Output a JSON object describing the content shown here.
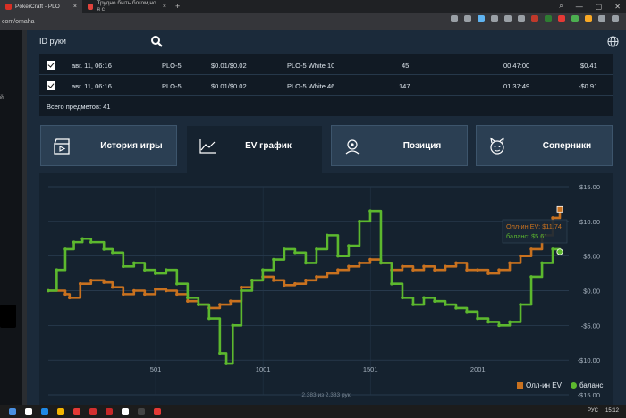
{
  "browser": {
    "tabs": [
      {
        "label": "PokerCraft - PLO",
        "close": "×",
        "color": "#d93025"
      },
      {
        "label": "Трудно быть богом,но я с",
        "close": "×",
        "color": "#e0433c"
      }
    ],
    "new_tab": "+",
    "url": "com/omaha",
    "window_controls": [
      "⌕",
      "—",
      "▢",
      "✕"
    ],
    "extensions": [
      "#9aa0a6",
      "#9aa0a6",
      "#5fb3f0",
      "#9aa0a6",
      "#9aa0a6",
      "#9aa0a6",
      "#c0392b",
      "#2e7d32",
      "#e53935",
      "#4caf50",
      "#f9a825",
      "#9aa0a6",
      "#9aa0a6"
    ]
  },
  "search": {
    "label": "ID руки"
  },
  "hands_table": {
    "rows": [
      {
        "date": "авг. 11, 06:16",
        "game": "PLO-5",
        "stakes": "$0.01/$0.02",
        "table": "PLO-5 White 10",
        "hands": "45",
        "duration": "00:47:00",
        "result": "$0.41"
      },
      {
        "date": "авг. 11, 06:16",
        "game": "PLO-5",
        "stakes": "$0.01/$0.02",
        "table": "PLO-5 White 46",
        "hands": "147",
        "duration": "01:37:49",
        "result": "-$0.91"
      }
    ],
    "total": "Всего предметов: 41"
  },
  "tabs": [
    {
      "label": "История игры",
      "icon": "clapperboard-icon"
    },
    {
      "label": "EV график",
      "icon": "line-chart-icon"
    },
    {
      "label": "Позиция",
      "icon": "position-icon"
    },
    {
      "label": "Соперники",
      "icon": "devil-icon"
    }
  ],
  "chart_data": {
    "type": "line",
    "x_ticks": [
      "501",
      "1001",
      "1501",
      "2001"
    ],
    "x_tick_values": [
      501,
      1001,
      1501,
      2001
    ],
    "y_ticks": [
      "$15.00",
      "$10.00",
      "$5.00",
      "$0.00",
      "-$5.00",
      "-$10.00",
      "-$15.00"
    ],
    "y_tick_values": [
      15,
      10,
      5,
      0,
      -5,
      -10,
      -15
    ],
    "xlim": [
      1,
      2383
    ],
    "ylim": [
      -15,
      15
    ],
    "grid": true,
    "legend_position": "bottom-right",
    "series": [
      {
        "name": "Олл-ин EV",
        "color": "#c8711f",
        "x": [
          1,
          80,
          100,
          150,
          200,
          260,
          300,
          350,
          400,
          450,
          500,
          550,
          600,
          650,
          700,
          750,
          800,
          850,
          900,
          950,
          1000,
          1050,
          1100,
          1150,
          1200,
          1250,
          1300,
          1350,
          1400,
          1450,
          1500,
          1550,
          1600,
          1650,
          1700,
          1750,
          1800,
          1850,
          1900,
          1950,
          2000,
          2050,
          2100,
          2150,
          2200,
          2250,
          2300,
          2350,
          2383
        ],
        "y": [
          0.0,
          -0.5,
          -1.0,
          1.0,
          1.5,
          1.2,
          0.5,
          -0.5,
          0.0,
          -0.5,
          0.2,
          0.0,
          -0.5,
          -1.5,
          -2.0,
          -2.5,
          -2.0,
          -1.5,
          0.5,
          1.5,
          2.0,
          1.5,
          0.8,
          1.0,
          1.5,
          2.0,
          2.5,
          3.0,
          3.5,
          4.0,
          4.5,
          4.0,
          3.0,
          3.5,
          3.0,
          3.5,
          3.0,
          3.5,
          4.0,
          3.0,
          3.0,
          2.5,
          3.0,
          4.0,
          5.0,
          6.0,
          8.0,
          10.5,
          11.74
        ]
      },
      {
        "name": "баланс",
        "color": "#5cb82e",
        "x": [
          1,
          40,
          80,
          120,
          160,
          200,
          260,
          300,
          350,
          400,
          450,
          500,
          550,
          600,
          650,
          700,
          750,
          800,
          830,
          860,
          900,
          950,
          1000,
          1050,
          1100,
          1150,
          1200,
          1250,
          1300,
          1350,
          1400,
          1450,
          1500,
          1550,
          1600,
          1650,
          1700,
          1750,
          1800,
          1850,
          1900,
          1950,
          2000,
          2050,
          2100,
          2150,
          2200,
          2250,
          2300,
          2350,
          2383
        ],
        "y": [
          0.0,
          3.0,
          6.0,
          7.0,
          7.5,
          7.0,
          6.0,
          5.5,
          3.5,
          4.0,
          3.0,
          2.5,
          3.0,
          1.0,
          -1.0,
          -2.0,
          -4.0,
          -9.0,
          -10.5,
          -5.0,
          0.0,
          1.5,
          3.0,
          4.5,
          6.0,
          5.5,
          4.0,
          6.0,
          8.0,
          5.0,
          6.5,
          10.0,
          11.5,
          4.0,
          1.0,
          -1.0,
          -2.0,
          -1.0,
          -1.5,
          -2.0,
          -2.5,
          -3.0,
          -4.0,
          -4.5,
          -5.0,
          -4.5,
          -2.0,
          2.0,
          4.0,
          6.0,
          5.61
        ]
      }
    ],
    "tooltip": {
      "line1": "Олл-ин EV: $11.74",
      "line2": "баланс: $5.61"
    },
    "legend": [
      {
        "label": "Олл-ин EV",
        "color": "#c8711f"
      },
      {
        "label": "баланс",
        "color": "#5cb82e"
      }
    ],
    "footer": "2,383 из 2,383 рук"
  },
  "taskbar": {
    "items": [
      "#4a90e2",
      "#ffffff",
      "#1e88e5",
      "#f4b400",
      "#e53935",
      "#d32f2f",
      "#c62828",
      "#ffffff",
      "#444",
      "#e53935"
    ],
    "tray": [
      "РУС",
      "15:12"
    ]
  }
}
